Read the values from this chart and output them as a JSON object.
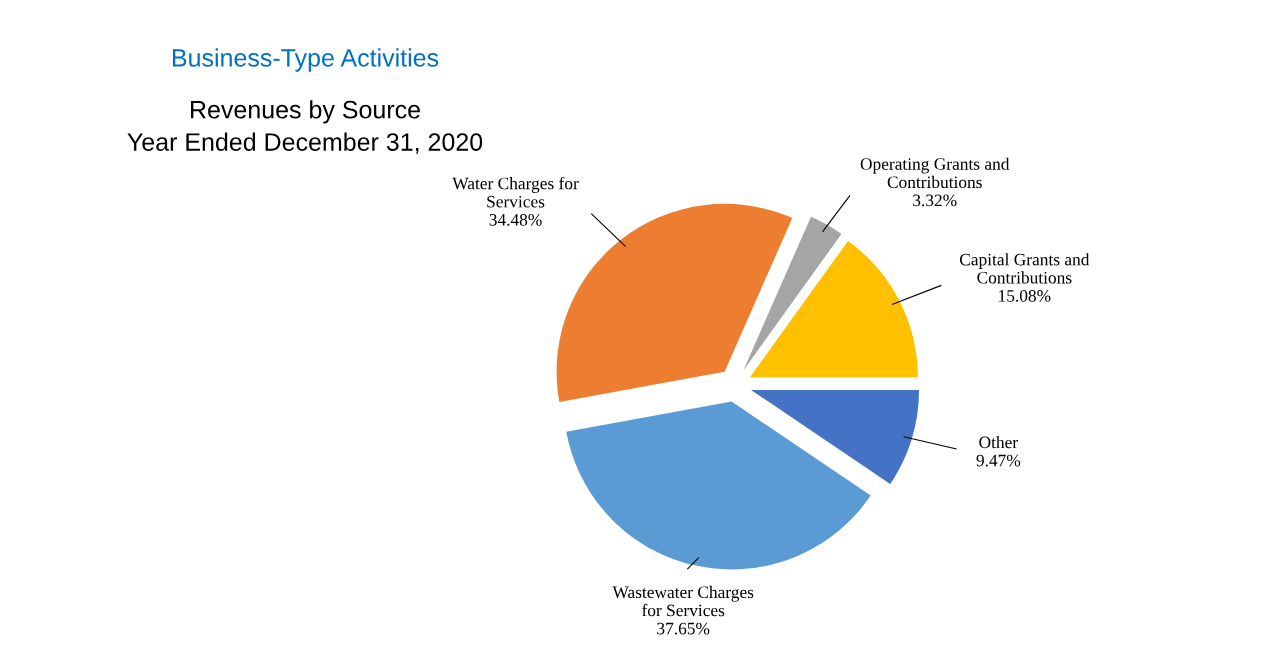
{
  "chart_data": {
    "type": "pie",
    "title": "Business-Type Activities",
    "subtitle": "Revenues by Source\nYear Ended December 31, 2020",
    "categories": [
      "Capital Grants and Contributions",
      "Operating Grants and Contributions",
      "Water Charges for Services",
      "Wastewater Charges for Services",
      "Other"
    ],
    "values": [
      15.08,
      3.32,
      34.48,
      37.65,
      9.47
    ],
    "colors": [
      "#ffc000",
      "#a5a5a5",
      "#ed7d31",
      "#5b9bd5",
      "#4472c4"
    ],
    "value_labels": [
      "15.08%",
      "3.32%",
      "34.48%",
      "37.65%",
      "9.47%"
    ]
  }
}
